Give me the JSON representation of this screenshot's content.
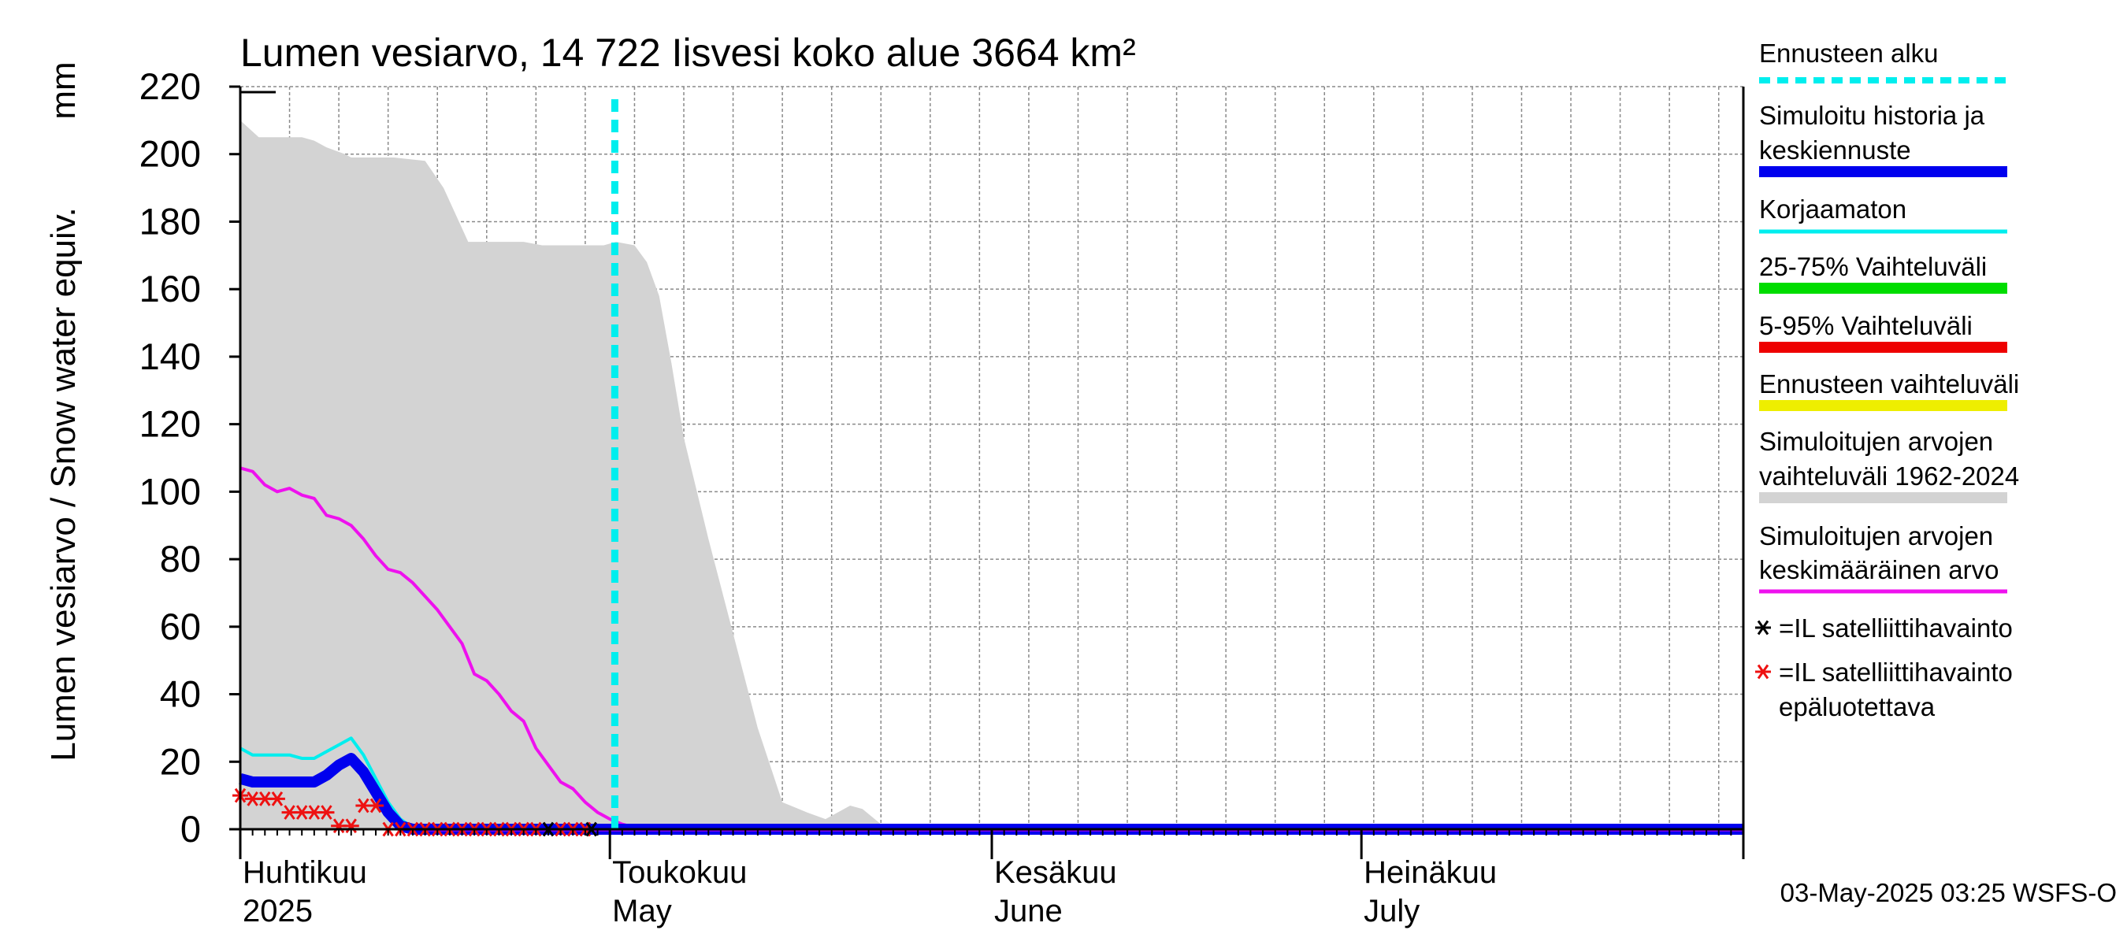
{
  "chart_data": {
    "type": "area",
    "title": "Lumen vesiarvo, 14 722 Iisvesi koko alue 3664 km²",
    "ylabel": "Lumen vesiarvo / Snow water equiv.",
    "yunit": "mm",
    "ylim": [
      0,
      220
    ],
    "yticks": [
      0,
      20,
      40,
      60,
      80,
      100,
      120,
      140,
      160,
      180,
      200,
      220
    ],
    "xlim": [
      0,
      122
    ],
    "x_unit": "days since 2025-03-31",
    "grid": true,
    "month_labels": [
      {
        "x": 0,
        "fi": "Huhtikuu",
        "en": "2025"
      },
      {
        "x": 30,
        "fi": "Toukokuu",
        "en": "May"
      },
      {
        "x": 61,
        "fi": "Kesäkuu",
        "en": "June"
      },
      {
        "x": 91,
        "fi": "Heinäkuu",
        "en": "July"
      }
    ],
    "month_ticks": [
      0,
      30,
      61,
      91,
      122
    ],
    "forecast_start_x": 30.4,
    "series": [
      {
        "name": "Simuloitujen arvojen vaihteluväli 1962-2024",
        "kind": "band",
        "color": "#d3d3d3",
        "x": [
          0,
          1.5,
          5,
          6,
          7,
          8.5,
          9,
          12.5,
          15,
          16.5,
          17.5,
          18.5,
          19.5,
          20.5,
          22,
          23,
          24.5,
          26,
          27.5,
          29.5,
          30.5,
          32,
          33,
          34,
          35,
          36,
          38,
          40,
          42,
          44,
          46,
          47.5,
          48.5,
          49.5,
          50.5,
          51.5,
          52.5,
          53,
          122
        ],
        "upper": [
          210,
          205,
          205,
          204,
          202,
          200,
          199,
          199,
          198,
          190,
          182,
          174,
          174,
          174,
          174,
          174,
          173,
          173,
          173,
          173,
          174,
          173,
          168,
          158,
          138,
          116,
          86,
          58,
          30,
          8,
          5,
          3,
          5,
          7,
          6,
          3,
          0,
          0,
          0
        ],
        "lower": 0
      },
      {
        "name": "Simuloitujen arvojen keskimääräinen arvo",
        "color": "#ee11ee",
        "x": [
          0,
          1,
          2,
          3,
          4,
          5,
          6,
          7,
          8,
          9,
          10,
          11,
          12,
          13,
          14,
          15,
          16,
          17,
          18,
          19,
          20,
          21,
          22,
          23,
          24,
          25,
          26,
          27,
          28,
          29,
          30,
          31,
          32,
          33,
          34,
          122
        ],
        "values": [
          107,
          106,
          102,
          100,
          101,
          99,
          98,
          93,
          92,
          90,
          86,
          81,
          77,
          76,
          73,
          69,
          65,
          60,
          55,
          46,
          44,
          40,
          35,
          32,
          24,
          19,
          14,
          12,
          8,
          5,
          3,
          1.5,
          0.5,
          0,
          0,
          0
        ]
      },
      {
        "name": "Korjaamaton",
        "color": "#00eeee",
        "x": [
          0,
          1,
          2,
          3,
          4,
          5,
          6,
          7,
          8,
          9,
          10,
          11,
          12,
          13,
          14,
          15,
          122
        ],
        "values": [
          24,
          22,
          22,
          22,
          22,
          21,
          21,
          23,
          25,
          27,
          22,
          15,
          8,
          3,
          0.5,
          0,
          0
        ]
      },
      {
        "name": "Simuloitu historia ja keskiennuste",
        "color": "#0000ee",
        "x": [
          0,
          1,
          2,
          3,
          4,
          5,
          6,
          7,
          8,
          9,
          10,
          11,
          12,
          13,
          14,
          15,
          122
        ],
        "values": [
          15,
          14,
          14,
          14,
          14,
          14,
          14,
          16,
          19,
          21,
          17,
          11,
          5,
          1,
          0,
          0,
          0
        ]
      }
    ],
    "observations": {
      "reliable": {
        "name": "=IL satelliittihavainto",
        "color": "#000000",
        "points": [
          [
            25,
            0
          ],
          [
            28.5,
            0
          ]
        ]
      },
      "unreliable": {
        "name": "=IL satelliittihavainto epäluotettava",
        "color": "#ee1111",
        "points": [
          [
            0,
            10
          ],
          [
            1,
            9
          ],
          [
            2,
            9
          ],
          [
            3,
            9
          ],
          [
            4,
            5
          ],
          [
            5,
            5
          ],
          [
            6,
            5
          ],
          [
            7,
            5
          ],
          [
            8,
            1
          ],
          [
            9,
            1
          ],
          [
            10,
            7
          ],
          [
            11,
            7
          ],
          [
            12,
            0
          ],
          [
            13,
            0
          ],
          [
            14,
            0
          ],
          [
            15,
            0
          ],
          [
            16,
            0
          ],
          [
            17,
            0
          ],
          [
            18,
            0
          ],
          [
            19,
            0
          ],
          [
            20,
            0
          ],
          [
            21,
            0
          ],
          [
            22,
            0
          ],
          [
            23,
            0
          ],
          [
            24,
            0
          ],
          [
            26,
            0
          ],
          [
            27,
            0
          ],
          [
            28,
            0
          ]
        ]
      }
    },
    "legend_position": "right",
    "legend": [
      {
        "label": "Ennusteen alku",
        "color": "#00eeee",
        "style": "dashed"
      },
      {
        "label": "Simuloitu historia ja keskiennuste",
        "color": "#0000ee",
        "style": "solid-thick"
      },
      {
        "label": "Korjaamaton",
        "color": "#00eeee",
        "style": "solid"
      },
      {
        "label": "25-75% Vaihteluväli",
        "color": "#00dd00",
        "style": "solid-thick"
      },
      {
        "label": "5-95% Vaihteluväli",
        "color": "#ee0000",
        "style": "solid-thick"
      },
      {
        "label": "Ennusteen vaihteluväli",
        "color": "#eeee00",
        "style": "solid-thick"
      },
      {
        "label": "Simuloitujen arvojen vaihteluväli 1962-2024",
        "color": "#d3d3d3",
        "style": "solid-thick"
      },
      {
        "label": "Simuloitujen arvojen keskimääräinen arvo",
        "color": "#ee11ee",
        "style": "solid"
      },
      {
        "label": "=IL satelliittihavainto",
        "color": "#000000",
        "style": "marker"
      },
      {
        "label": "=IL satelliittihavainto epäluotettava",
        "color": "#ee1111",
        "style": "marker"
      }
    ],
    "footer": "03-May-2025 03:25 WSFS-O"
  }
}
